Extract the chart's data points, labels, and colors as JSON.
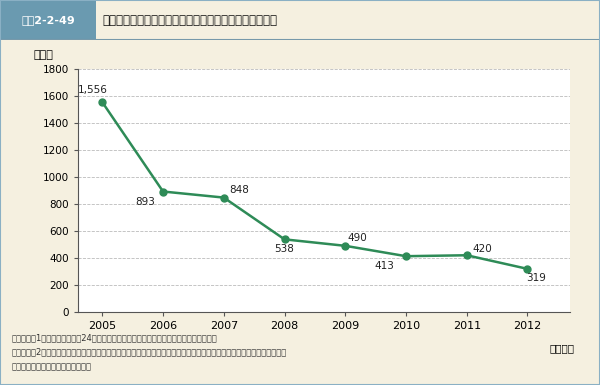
{
  "years": [
    2005,
    2006,
    2007,
    2008,
    2009,
    2010,
    2011,
    2012
  ],
  "values": [
    1556,
    893,
    848,
    538,
    490,
    413,
    420,
    319
  ],
  "ylabel": "（件）",
  "xlabel": "（年度）",
  "ylim": [
    0,
    1800
  ],
  "yticks": [
    0,
    200,
    400,
    600,
    800,
    1000,
    1200,
    1400,
    1600,
    1800
  ],
  "line_color": "#2e8b57",
  "marker_color": "#2e8b57",
  "bg_color": "#f5f0e0",
  "plot_bg_color": "#ffffff",
  "header_bg": "#8bb4c8",
  "label_bg": "#6a9ab0",
  "note_line1": "（備考）　1．消費者庁「平成24年度個人情報の保護に関する法律　施行状況の概要」。",
  "note_line2": "　　　　　2．「漏えい」のほか、「滅失」、「毀損」の事案を含む。また、各主務大臣において把握し、消費者庁に報告",
  "note_line3": "　　　　　　　された事案に限る。",
  "header_label": "図表2-2-49",
  "header_title": "事業者が公表した個人情報の漏えい事案件数は減少傾向"
}
